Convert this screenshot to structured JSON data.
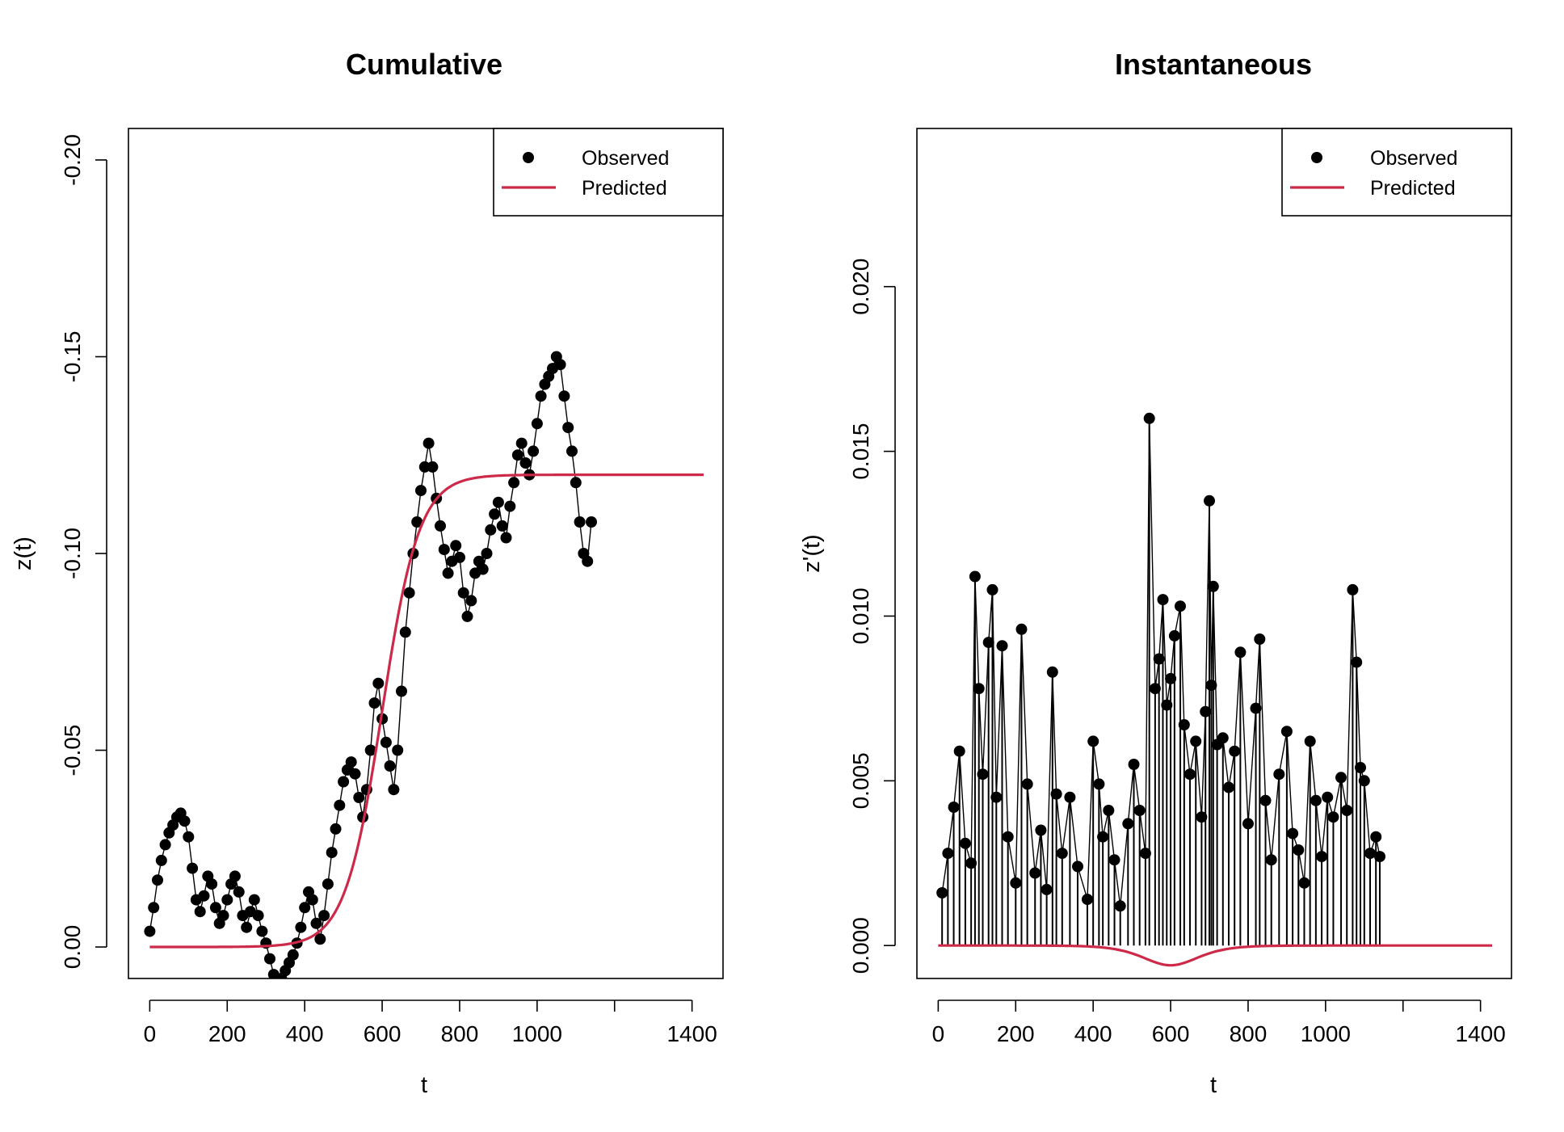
{
  "chart_data": [
    {
      "type": "scatter",
      "title": "Cumulative",
      "xlabel": "t",
      "ylabel": "z(t)",
      "xlim": [
        -55,
        1480
      ],
      "ylim": [
        0.008,
        -0.208
      ],
      "y_axis_reversed": true,
      "x_ticks": [
        0,
        200,
        400,
        600,
        800,
        1000,
        1200,
        1400
      ],
      "x_tick_labels": [
        "0",
        "200",
        "400",
        "600",
        "800",
        "1000",
        "",
        "1400"
      ],
      "y_ticks": [
        0.0,
        -0.05,
        -0.1,
        -0.15,
        -0.2
      ],
      "y_tick_labels": [
        "0.00",
        "-0.05",
        "-0.10",
        "-0.15",
        "-0.20"
      ],
      "legend": {
        "position": "top-right",
        "entries": [
          "Observed",
          "Predicted"
        ]
      },
      "series": [
        {
          "name": "Observed",
          "style": "points",
          "color": "#000000",
          "x": [
            0,
            10,
            20,
            30,
            40,
            50,
            60,
            70,
            80,
            90,
            100,
            110,
            120,
            130,
            140,
            150,
            160,
            170,
            180,
            190,
            200,
            210,
            220,
            230,
            240,
            250,
            260,
            270,
            280,
            290,
            300,
            310,
            320,
            330,
            340,
            350,
            360,
            370,
            380,
            390,
            400,
            410,
            420,
            430,
            440,
            450,
            460,
            470,
            480,
            490,
            500,
            510,
            520,
            530,
            540,
            550,
            560,
            570,
            580,
            590,
            600,
            610,
            620,
            630,
            640,
            650,
            660,
            670,
            680,
            690,
            700,
            710,
            720,
            730,
            740,
            750,
            760,
            770,
            780,
            790,
            800,
            810,
            820,
            830,
            840,
            850,
            860,
            870,
            880,
            890,
            900,
            910,
            920,
            930,
            940,
            950,
            960,
            970,
            980,
            990,
            1000,
            1010,
            1020,
            1030,
            1040,
            1050,
            1060,
            1070,
            1080,
            1090,
            1100,
            1110,
            1120,
            1130,
            1140
          ],
          "y": [
            -0.004,
            -0.01,
            -0.017,
            -0.022,
            -0.026,
            -0.029,
            -0.031,
            -0.033,
            -0.034,
            -0.032,
            -0.028,
            -0.02,
            -0.012,
            -0.009,
            -0.013,
            -0.018,
            -0.016,
            -0.01,
            -0.006,
            -0.008,
            -0.012,
            -0.016,
            -0.018,
            -0.014,
            -0.008,
            -0.005,
            -0.009,
            -0.012,
            -0.008,
            -0.004,
            -0.001,
            0.003,
            0.007,
            0.009,
            0.008,
            0.006,
            0.004,
            0.002,
            -0.001,
            -0.005,
            -0.01,
            -0.014,
            -0.012,
            -0.006,
            -0.002,
            -0.008,
            -0.016,
            -0.024,
            -0.03,
            -0.036,
            -0.042,
            -0.045,
            -0.047,
            -0.044,
            -0.038,
            -0.033,
            -0.04,
            -0.05,
            -0.062,
            -0.067,
            -0.058,
            -0.052,
            -0.046,
            -0.04,
            -0.05,
            -0.065,
            -0.08,
            -0.09,
            -0.1,
            -0.108,
            -0.116,
            -0.122,
            -0.128,
            -0.122,
            -0.114,
            -0.107,
            -0.101,
            -0.095,
            -0.098,
            -0.102,
            -0.099,
            -0.09,
            -0.084,
            -0.088,
            -0.095,
            -0.098,
            -0.096,
            -0.1,
            -0.106,
            -0.11,
            -0.113,
            -0.107,
            -0.104,
            -0.112,
            -0.118,
            -0.125,
            -0.128,
            -0.123,
            -0.12,
            -0.126,
            -0.133,
            -0.14,
            -0.143,
            -0.145,
            -0.147,
            -0.15,
            -0.148,
            -0.14,
            -0.132,
            -0.126,
            -0.118,
            -0.108,
            -0.1,
            -0.098,
            -0.108
          ]
        },
        {
          "name": "Predicted",
          "style": "line",
          "color": "#cd2a4a",
          "model": "logistic",
          "x_range": [
            0,
            1430
          ],
          "params": {
            "L": -0.12,
            "midpoint": 600,
            "scale": 48
          }
        }
      ]
    },
    {
      "type": "scatter",
      "title": "Instantaneous",
      "xlabel": "t",
      "ylabel": "z'(t)",
      "xlim": [
        -55,
        1480
      ],
      "ylim": [
        -0.001,
        0.0248
      ],
      "x_ticks": [
        0,
        200,
        400,
        600,
        800,
        1000,
        1200,
        1400
      ],
      "x_tick_labels": [
        "0",
        "200",
        "400",
        "600",
        "800",
        "1000",
        "",
        "1400"
      ],
      "y_ticks": [
        0.0,
        0.005,
        0.01,
        0.015,
        0.02
      ],
      "y_tick_labels": [
        "0.000",
        "0.005",
        "0.010",
        "0.015",
        "0.020"
      ],
      "legend": {
        "position": "top-right",
        "entries": [
          "Observed",
          "Predicted"
        ]
      },
      "series": [
        {
          "name": "Observed",
          "style": "points-with-stems",
          "color": "#000000",
          "x": [
            10,
            25,
            40,
            55,
            70,
            85,
            95,
            105,
            115,
            130,
            140,
            150,
            165,
            180,
            200,
            215,
            230,
            250,
            265,
            280,
            295,
            305,
            320,
            340,
            360,
            385,
            400,
            415,
            425,
            440,
            455,
            470,
            490,
            505,
            520,
            535,
            545,
            560,
            570,
            580,
            590,
            600,
            610,
            625,
            635,
            650,
            665,
            680,
            690,
            700,
            705,
            710,
            720,
            735,
            750,
            765,
            780,
            800,
            820,
            830,
            845,
            860,
            880,
            900,
            915,
            930,
            945,
            960,
            975,
            990,
            1005,
            1020,
            1040,
            1055,
            1070,
            1080,
            1090,
            1100,
            1115,
            1130,
            1140
          ],
          "y": [
            0.0016,
            0.0028,
            0.0042,
            0.0059,
            0.0031,
            0.0025,
            0.0112,
            0.0078,
            0.0052,
            0.0092,
            0.0108,
            0.0045,
            0.0091,
            0.0033,
            0.0019,
            0.0096,
            0.0049,
            0.0022,
            0.0035,
            0.0017,
            0.0083,
            0.0046,
            0.0028,
            0.0045,
            0.0024,
            0.0014,
            0.0062,
            0.0049,
            0.0033,
            0.0041,
            0.0026,
            0.0012,
            0.0037,
            0.0055,
            0.0041,
            0.0028,
            0.016,
            0.0078,
            0.0087,
            0.0105,
            0.0073,
            0.0081,
            0.0094,
            0.0103,
            0.0067,
            0.0052,
            0.0062,
            0.0039,
            0.0071,
            0.0135,
            0.0079,
            0.0109,
            0.0061,
            0.0063,
            0.0048,
            0.0059,
            0.0089,
            0.0037,
            0.0072,
            0.0093,
            0.0044,
            0.0026,
            0.0052,
            0.0065,
            0.0034,
            0.0029,
            0.0019,
            0.0062,
            0.0044,
            0.0027,
            0.0045,
            0.0039,
            0.0051,
            0.0041,
            0.0108,
            0.0086,
            0.0054,
            0.005,
            0.0028,
            0.0033,
            0.0027
          ]
        },
        {
          "name": "Predicted",
          "style": "line",
          "color": "#cd2a4a",
          "model": "derivative-of-logistic",
          "x_range": [
            0,
            1430
          ],
          "params": {
            "amplitude": -0.0006,
            "midpoint": 600,
            "scale": 48
          }
        }
      ]
    }
  ]
}
